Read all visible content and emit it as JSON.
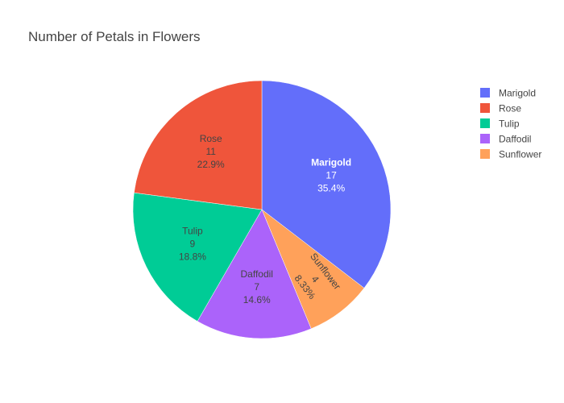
{
  "chart_data": {
    "type": "pie",
    "title": "Number of Petals in Flowers",
    "direction": "clockwise",
    "start_angle_deg": 0,
    "legend_position": "top-right",
    "slices": [
      {
        "label": "Marigold",
        "value": 17,
        "percent_text": "35.4%",
        "color": "#636efa",
        "text_color": "#ffffff",
        "label_bold": true
      },
      {
        "label": "Sunflower",
        "value": 4,
        "percent_text": "8.33%",
        "color": "#ffa15a",
        "text_color": "#444444",
        "label_bold": false
      },
      {
        "label": "Daffodil",
        "value": 7,
        "percent_text": "14.6%",
        "color": "#ab63fa",
        "text_color": "#444444",
        "label_bold": false
      },
      {
        "label": "Tulip",
        "value": 9,
        "percent_text": "18.8%",
        "color": "#00cc96",
        "text_color": "#444444",
        "label_bold": false
      },
      {
        "label": "Rose",
        "value": 11,
        "percent_text": "22.9%",
        "color": "#ef553b",
        "text_color": "#444444",
        "label_bold": false
      }
    ],
    "legend_order": [
      "Marigold",
      "Rose",
      "Tulip",
      "Daffodil",
      "Sunflower"
    ]
  }
}
